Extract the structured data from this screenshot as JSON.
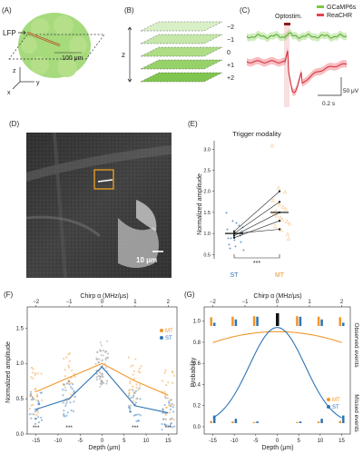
{
  "panels": {
    "A": {
      "label": "(A)",
      "lfp_label": "LFP",
      "scale_label": "100 μm",
      "axes": {
        "x": "x",
        "y": "y",
        "z": "z"
      }
    },
    "B": {
      "label": "(B)",
      "axis_label": "z",
      "planes": [
        "−2",
        "−1",
        "0",
        "+1",
        "+2"
      ]
    },
    "C": {
      "label": "(C)",
      "legend": [
        "GCaMP6s",
        "ReaCHR"
      ],
      "stim_label": "Optostim.",
      "time_scale": "0.2 s",
      "volt_scale": "50 μV",
      "colors": {
        "gcamp": "#7ac943",
        "reachr": "#e8414c"
      }
    },
    "D": {
      "label": "(D)",
      "scale_label": "10 μm"
    },
    "E": {
      "label": "(E)",
      "title": "Trigger modality",
      "ylabel": "Normalized amplitude",
      "categories": [
        "ST",
        "MT"
      ],
      "significance": "***",
      "chart_data": {
        "type": "scatter",
        "categories": [
          "ST",
          "MT"
        ],
        "median": [
          1.0,
          1.5
        ],
        "ylim": [
          0.4,
          3.2
        ],
        "ST_points": [
          1.5,
          1.3,
          1.2,
          1.1,
          1.0,
          0.95,
          0.9,
          0.85,
          0.8,
          0.75,
          0.7,
          1.05,
          0.65,
          1.25,
          1.15,
          0.9,
          1.0,
          0.6
        ],
        "MT_points": [
          3.1,
          2.1,
          2.0,
          1.8,
          1.7,
          1.6,
          1.5,
          1.4,
          1.3,
          1.2,
          1.1,
          1.0,
          1.55,
          1.35,
          0.9,
          1.45,
          1.65,
          1.25
        ],
        "paired_lines": [
          [
            1.05,
            2.0
          ],
          [
            1.0,
            1.75
          ],
          [
            0.95,
            1.5
          ],
          [
            0.9,
            1.3
          ],
          [
            1.0,
            1.1
          ]
        ]
      }
    },
    "F": {
      "label": "(F)",
      "xlabel": "Depth (μm)",
      "ylabel": "Normalized amplitude",
      "top_label": "Chirp α (MHz/μs)",
      "legend": [
        "MT",
        "ST"
      ],
      "significance": [
        "***",
        "***",
        "***",
        "***"
      ],
      "chart_data": {
        "type": "line",
        "x": [
          -15,
          -7.5,
          0,
          7.5,
          15
        ],
        "xticks": [
          -15,
          -10,
          -5,
          0,
          5,
          10,
          15
        ],
        "top_ticks": [
          "−2",
          "−1",
          "0",
          "1",
          "2"
        ],
        "series": [
          {
            "name": "MT",
            "values": [
              0.6,
              0.8,
              1.0,
              0.75,
              0.55
            ]
          },
          {
            "name": "ST",
            "values": [
              0.35,
              0.5,
              0.95,
              0.4,
              0.3
            ]
          }
        ],
        "yticks": [
          0.0,
          0.5,
          1.0,
          1.5
        ],
        "ylim": [
          0.0,
          1.8
        ]
      }
    },
    "G": {
      "label": "(G)",
      "xlabel": "Depth (μm)",
      "ylabel": "Probability",
      "top_label": "Chirp α (MHz/μs)",
      "right_top": "Observed events",
      "right_bottom": "Missed events",
      "legend": [
        "MT",
        "ST"
      ],
      "chart_data": {
        "type": "line",
        "x": [
          -15,
          -10,
          -5,
          0,
          5,
          10,
          15
        ],
        "xticks": [
          -15,
          -10,
          -5,
          0,
          5,
          10,
          15
        ],
        "top_ticks": [
          "−2",
          "−1",
          "0",
          "1",
          "2"
        ],
        "series": [
          {
            "name": "MT",
            "values": [
              0.82,
              0.86,
              0.89,
              0.9,
              0.89,
              0.86,
              0.82
            ]
          },
          {
            "name": "ST",
            "values": [
              0.2,
              0.48,
              0.78,
              0.92,
              0.78,
              0.48,
              0.2
            ]
          }
        ],
        "yticks": [
          0.0,
          0.2,
          0.4,
          0.6,
          0.8,
          1.0
        ],
        "ylim": [
          0.0,
          1.1
        ]
      }
    }
  },
  "colors": {
    "MT": "#f0962a",
    "ST": "#2f74b5",
    "highlight": "#f0a020"
  }
}
